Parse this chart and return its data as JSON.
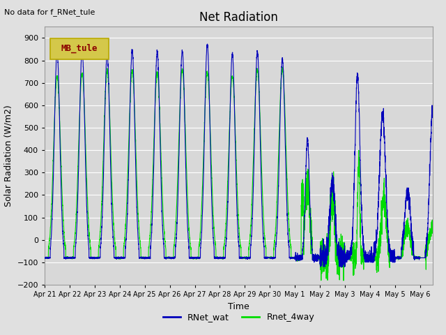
{
  "title": "Net Radiation",
  "ylabel": "Solar Radiation (W/m2)",
  "xlabel": "Time",
  "top_left_text": "No data for f_RNet_tule",
  "legend_box_text": "MB_tule",
  "legend_box_color": "#d4c84a",
  "legend_box_text_color": "#8b0000",
  "legend_box_edge_color": "#b8a800",
  "ylim": [
    -200,
    950
  ],
  "yticks": [
    -200,
    -100,
    0,
    100,
    200,
    300,
    400,
    500,
    600,
    700,
    800,
    900
  ],
  "xtick_labels": [
    "Apr 21",
    "Apr 22",
    "Apr 23",
    "Apr 24",
    "Apr 25",
    "Apr 26",
    "Apr 27",
    "Apr 28",
    "Apr 29",
    "Apr 30",
    "May 1",
    "May 2",
    "May 3",
    "May 4",
    "May 5",
    "May 6"
  ],
  "line1_color": "#0000bb",
  "line2_color": "#00dd00",
  "line1_label": "RNet_wat",
  "line2_label": "Rnet_4way",
  "bg_color": "#e0e0e0",
  "plot_bg_color": "#d8d8d8",
  "grid_color": "#ffffff",
  "title_fontsize": 12,
  "label_fontsize": 9,
  "tick_fontsize": 8,
  "figwidth": 6.4,
  "figheight": 4.8,
  "dpi": 100
}
